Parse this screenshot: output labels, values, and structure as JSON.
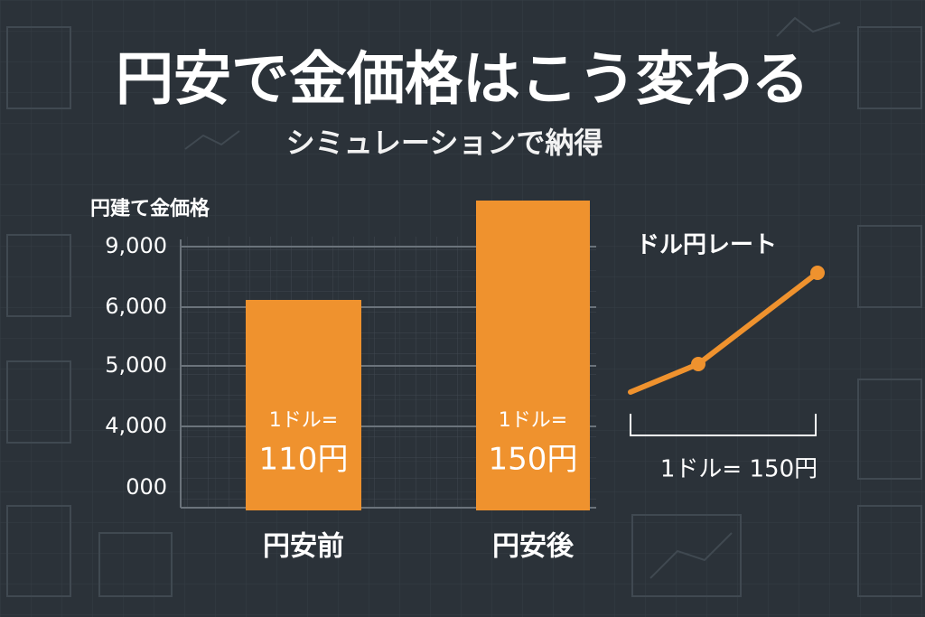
{
  "title": "円安で金価格はこう変わる",
  "subtitle": "シミュレーションで納得",
  "chart": {
    "axis_title": "円建て金価格",
    "axis_labels": [
      "9,000",
      "6,000",
      "5,000",
      "4,000",
      "000"
    ],
    "bars": [
      {
        "category": "円安前",
        "label_top": "1ドル=",
        "label_bottom": "110円"
      },
      {
        "category": "円安後",
        "label_top": "1ドル=",
        "label_bottom": "150円"
      }
    ]
  },
  "rate_chart": {
    "title": "ドル円レート",
    "caption": "1ドル= 150円"
  }
}
